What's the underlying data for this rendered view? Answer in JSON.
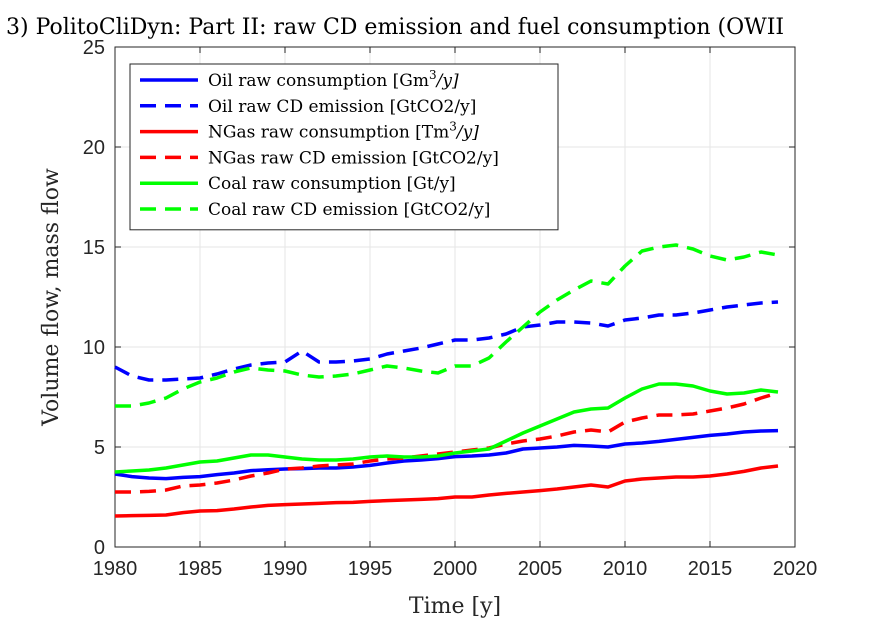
{
  "chart_data": {
    "type": "line",
    "title": "3) PolitoCliDyn: Part II: raw CD emission and fuel consumption (OWII",
    "xlabel": "Time [y]",
    "ylabel": "Volume flow, mass flow",
    "xlim": [
      1980,
      2020
    ],
    "ylim": [
      0,
      25
    ],
    "xticks": [
      "1980",
      "1985",
      "1990",
      "1995",
      "2000",
      "2005",
      "2010",
      "2015",
      "2020"
    ],
    "yticks": [
      "0",
      "5",
      "10",
      "15",
      "20",
      "25"
    ],
    "grid": true,
    "legend_position": "top-left",
    "x": [
      1980,
      1981,
      1982,
      1983,
      1984,
      1985,
      1986,
      1987,
      1988,
      1989,
      1990,
      1991,
      1992,
      1993,
      1994,
      1995,
      1996,
      1997,
      1998,
      1999,
      2000,
      2001,
      2002,
      2003,
      2004,
      2005,
      2006,
      2007,
      2008,
      2009,
      2010,
      2011,
      2012,
      2013,
      2014,
      2015,
      2016,
      2017,
      2018,
      2019
    ],
    "series": [
      {
        "name": "Oil raw consumption [Gm³/y]",
        "legend_main": "Oil raw consumption [Gm",
        "legend_sup": "3",
        "legend_tail": "/y]",
        "color": "#0000ff",
        "dashed": false,
        "values": [
          3.65,
          3.52,
          3.45,
          3.42,
          3.48,
          3.52,
          3.62,
          3.7,
          3.82,
          3.86,
          3.9,
          3.92,
          3.95,
          3.95,
          4.0,
          4.08,
          4.2,
          4.3,
          4.35,
          4.42,
          4.52,
          4.55,
          4.6,
          4.7,
          4.9,
          4.95,
          5.0,
          5.08,
          5.05,
          5.0,
          5.15,
          5.2,
          5.28,
          5.38,
          5.48,
          5.58,
          5.65,
          5.75,
          5.8,
          5.82
        ]
      },
      {
        "name": "Oil raw CD emission [GtCO2/y]",
        "legend_main": "Oil raw CD emission [GtCO2/y]",
        "color": "#0000ff",
        "dashed": true,
        "values": [
          9.0,
          8.55,
          8.35,
          8.35,
          8.4,
          8.45,
          8.65,
          8.9,
          9.1,
          9.2,
          9.25,
          9.8,
          9.25,
          9.25,
          9.3,
          9.4,
          9.65,
          9.8,
          9.95,
          10.15,
          10.35,
          10.35,
          10.45,
          10.65,
          11.0,
          11.1,
          11.25,
          11.25,
          11.2,
          11.05,
          11.35,
          11.45,
          11.6,
          11.6,
          11.7,
          11.85,
          12.0,
          12.1,
          12.2,
          12.25
        ]
      },
      {
        "name": "NGas raw consumption [Tm³/y]",
        "legend_main": "NGas raw consumption [Tm",
        "legend_sup": "3",
        "legend_tail": "/y]",
        "color": "#ff0000",
        "dashed": false,
        "values": [
          1.55,
          1.57,
          1.58,
          1.6,
          1.72,
          1.8,
          1.82,
          1.9,
          2.0,
          2.08,
          2.12,
          2.15,
          2.18,
          2.22,
          2.23,
          2.28,
          2.32,
          2.35,
          2.38,
          2.42,
          2.5,
          2.5,
          2.6,
          2.68,
          2.75,
          2.82,
          2.9,
          3.0,
          3.1,
          3.0,
          3.3,
          3.4,
          3.45,
          3.5,
          3.5,
          3.55,
          3.65,
          3.78,
          3.95,
          4.05
        ]
      },
      {
        "name": "NGas raw CD emission [GtCO2/y]",
        "legend_main": "NGas raw CD emission [GtCO2/y]",
        "color": "#ff0000",
        "dashed": true,
        "values": [
          2.75,
          2.75,
          2.78,
          2.85,
          3.05,
          3.1,
          3.2,
          3.35,
          3.55,
          3.7,
          3.9,
          3.95,
          4.05,
          4.1,
          4.15,
          4.3,
          4.4,
          4.45,
          4.55,
          4.65,
          4.75,
          4.85,
          4.95,
          5.15,
          5.3,
          5.4,
          5.55,
          5.75,
          5.85,
          5.75,
          6.25,
          6.45,
          6.6,
          6.6,
          6.65,
          6.8,
          6.95,
          7.15,
          7.45,
          7.7
        ]
      },
      {
        "name": "Coal raw consumption [Gt/y]",
        "legend_main": "Coal raw consumption [Gt/y]",
        "color": "#00ff00",
        "dashed": false,
        "values": [
          3.75,
          3.8,
          3.85,
          3.95,
          4.1,
          4.25,
          4.3,
          4.45,
          4.6,
          4.6,
          4.5,
          4.4,
          4.35,
          4.35,
          4.4,
          4.5,
          4.55,
          4.5,
          4.5,
          4.55,
          4.7,
          4.8,
          4.9,
          5.3,
          5.7,
          6.05,
          6.4,
          6.75,
          6.9,
          6.95,
          7.45,
          7.9,
          8.15,
          8.15,
          8.05,
          7.8,
          7.65,
          7.7,
          7.85,
          7.75
        ]
      },
      {
        "name": "Coal raw CD emission [GtCO2/y]",
        "legend_main": "Coal raw CD emission [GtCO2/y]",
        "color": "#00ff00",
        "dashed": true,
        "values": [
          7.05,
          7.05,
          7.2,
          7.45,
          7.9,
          8.25,
          8.45,
          8.75,
          8.95,
          8.85,
          8.8,
          8.6,
          8.5,
          8.55,
          8.65,
          8.85,
          9.05,
          8.95,
          8.8,
          8.7,
          9.05,
          9.05,
          9.45,
          10.25,
          11.0,
          11.75,
          12.35,
          12.85,
          13.3,
          13.15,
          14.05,
          14.8,
          15.0,
          15.1,
          14.9,
          14.55,
          14.35,
          14.5,
          14.75,
          14.6
        ]
      }
    ]
  }
}
